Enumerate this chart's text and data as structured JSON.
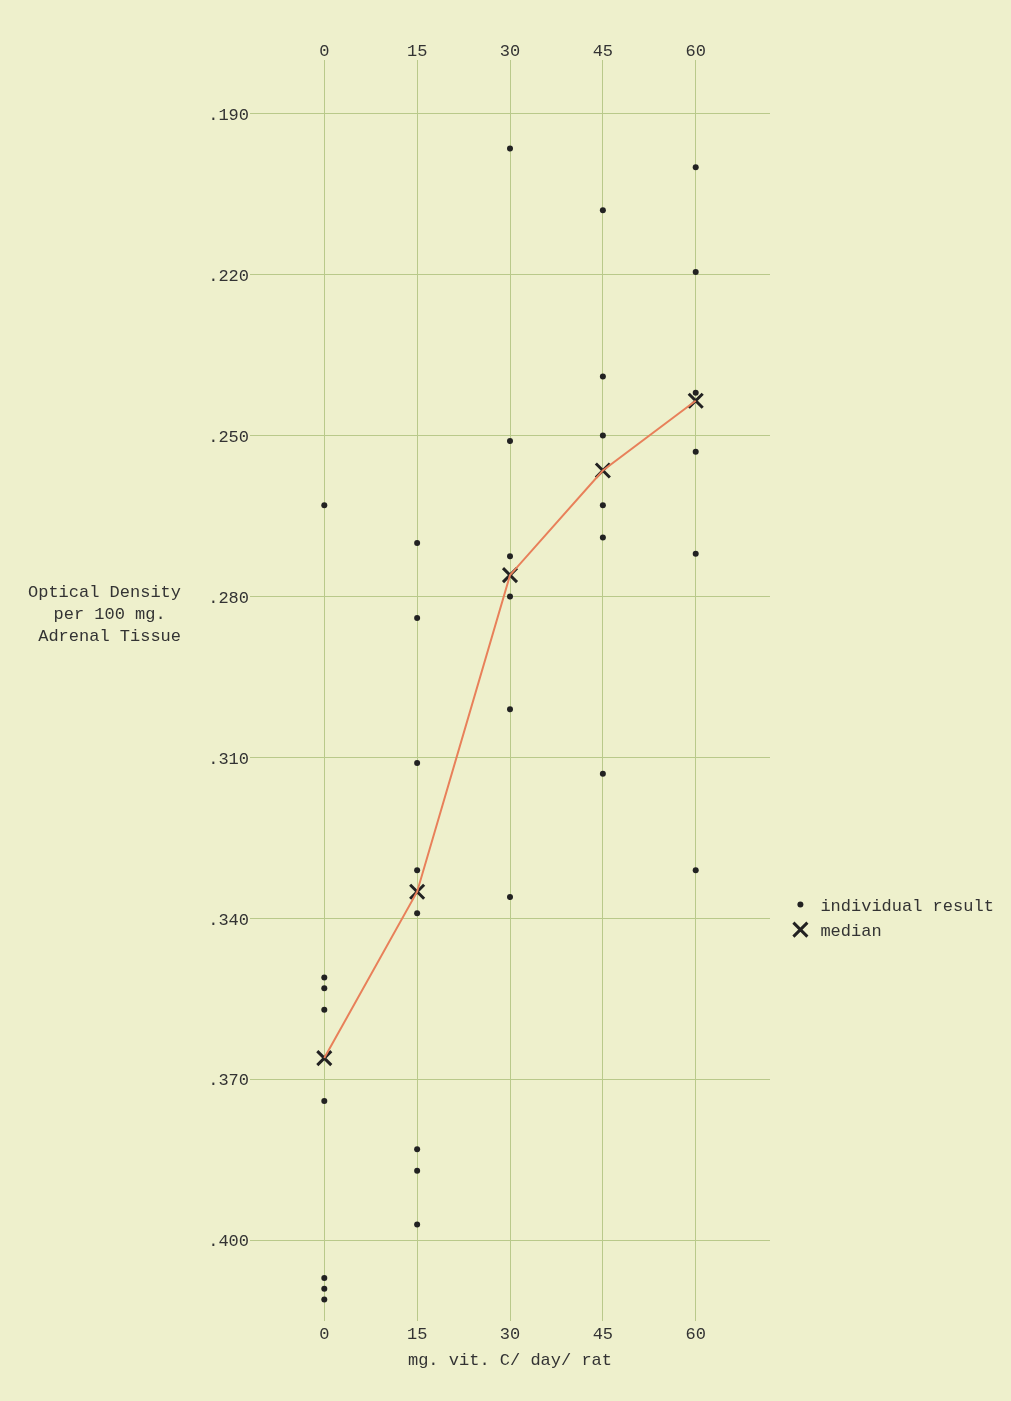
{
  "chart_data": {
    "type": "scatter",
    "xlabel": "mg. vit. C/ day/ rat",
    "ylabel": "Optical Density per 100 mg. Adrenal Tissue",
    "xlim": [
      -12,
      72
    ],
    "xticks": [
      0,
      15,
      30,
      45,
      60
    ],
    "x2lim": [
      -12,
      72
    ],
    "x2ticks": [
      0,
      15,
      30,
      45,
      60
    ],
    "ylim": [
      0.415,
      0.18
    ],
    "yticks": [
      {
        "value": 0.19,
        "label": ".190"
      },
      {
        "value": 0.22,
        "label": ".220"
      },
      {
        "value": 0.25,
        "label": ".250"
      },
      {
        "value": 0.28,
        "label": ".280"
      },
      {
        "value": 0.31,
        "label": ".310"
      },
      {
        "value": 0.34,
        "label": ".340"
      },
      {
        "value": 0.37,
        "label": ".370"
      },
      {
        "value": 0.4,
        "label": ".400"
      }
    ],
    "grid": true,
    "legend": "right",
    "series": [
      {
        "name": "individual result",
        "type": "scatter",
        "marker": "circle",
        "color": "#222222",
        "x": [
          0,
          0,
          0,
          0,
          0,
          0,
          0,
          0,
          15,
          15,
          15,
          15,
          15,
          15,
          15,
          15,
          30,
          30,
          30,
          30,
          30,
          30,
          45,
          45,
          45,
          45,
          45,
          45,
          60,
          60,
          60,
          60,
          60,
          60
        ],
        "values": [
          0.263,
          0.351,
          0.353,
          0.357,
          0.374,
          0.407,
          0.409,
          0.411,
          0.27,
          0.284,
          0.311,
          0.331,
          0.339,
          0.383,
          0.387,
          0.397,
          0.1965,
          0.251,
          0.2725,
          0.28,
          0.301,
          0.336,
          0.208,
          0.239,
          0.25,
          0.263,
          0.269,
          0.313,
          0.2,
          0.2195,
          0.242,
          0.253,
          0.272,
          0.331
        ]
      },
      {
        "name": "median",
        "type": "scatter",
        "marker": "cross",
        "color": "#222222",
        "x": [
          0,
          15,
          30,
          45,
          60
        ],
        "values": [
          0.366,
          0.335,
          0.276,
          0.2565,
          0.2435
        ]
      },
      {
        "type": "line",
        "marker": "none",
        "line_style": "solid",
        "color": "#e8805a",
        "x": [
          0,
          15,
          30,
          45,
          60
        ],
        "values": [
          0.366,
          0.335,
          0.276,
          0.2565,
          0.2435
        ]
      }
    ]
  }
}
